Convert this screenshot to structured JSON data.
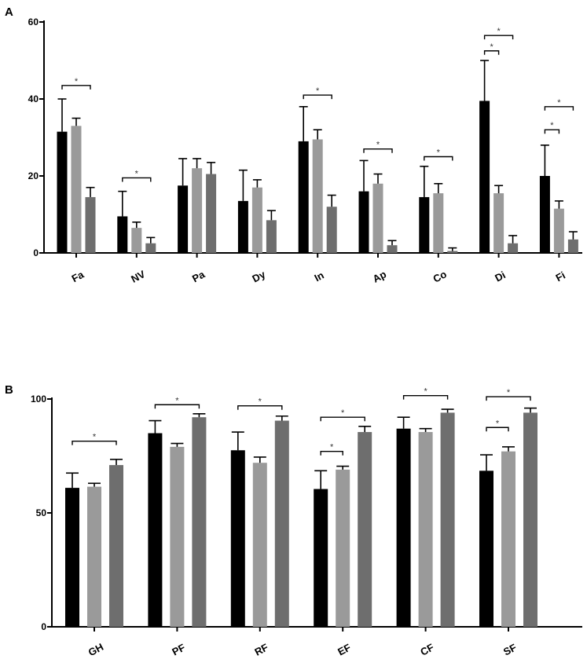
{
  "colors": {
    "series": [
      "#000000",
      "#9a9a9a",
      "#6e6e6e"
    ],
    "axis": "#000000"
  },
  "chart_data": [
    {
      "type": "bar",
      "panel": "A",
      "categories": [
        "Fa",
        "NV",
        "Pa",
        "Dy",
        "In",
        "Ap",
        "Co",
        "Di",
        "Fi"
      ],
      "ylim": [
        0,
        60
      ],
      "yticks": [
        0,
        20,
        40,
        60
      ],
      "grid": false,
      "legend": "none",
      "series": [
        {
          "values": [
            31.5,
            9.5,
            17.5,
            13.5,
            29,
            16,
            14.5,
            39.5,
            20
          ],
          "errors": [
            8.5,
            6.5,
            7,
            8,
            9,
            8,
            8,
            10.5,
            8
          ]
        },
        {
          "values": [
            33,
            6.5,
            22,
            17,
            29.5,
            18,
            15.5,
            15.5,
            11.5
          ],
          "errors": [
            2,
            1.5,
            2.5,
            2,
            2.5,
            2.5,
            2.5,
            2,
            2
          ]
        },
        {
          "values": [
            14.5,
            2.5,
            20.5,
            8.5,
            12,
            2,
            0.5,
            2.5,
            3.5
          ],
          "errors": [
            2.5,
            1.5,
            3,
            2.5,
            3,
            1.2,
            0.8,
            2,
            2
          ]
        }
      ],
      "significance": [
        {
          "category": 0,
          "from": 0,
          "to": 2,
          "y": 43.5,
          "label": "*"
        },
        {
          "category": 1,
          "from": 0,
          "to": 2,
          "y": 19.5,
          "label": "*"
        },
        {
          "category": 4,
          "from": 0,
          "to": 2,
          "y": 41.0,
          "label": "*"
        },
        {
          "category": 5,
          "from": 0,
          "to": 2,
          "y": 27.0,
          "label": "*"
        },
        {
          "category": 6,
          "from": 0,
          "to": 2,
          "y": 25.0,
          "label": "*"
        },
        {
          "category": 7,
          "from": 0,
          "to": 1,
          "y": 52.5,
          "label": "*"
        },
        {
          "category": 7,
          "from": 0,
          "to": 2,
          "y": 56.5,
          "label": "*"
        },
        {
          "category": 8,
          "from": 0,
          "to": 1,
          "y": 32.0,
          "label": "*"
        },
        {
          "category": 8,
          "from": 0,
          "to": 2,
          "y": 38.0,
          "label": "*"
        }
      ]
    },
    {
      "type": "bar",
      "panel": "B",
      "categories": [
        "GH",
        "PF",
        "RF",
        "EF",
        "CF",
        "SF"
      ],
      "ylim": [
        0,
        100
      ],
      "yticks": [
        0,
        50,
        100
      ],
      "grid": false,
      "legend": "none",
      "series": [
        {
          "values": [
            61,
            85,
            77.5,
            60.5,
            87,
            68.5
          ],
          "errors": [
            6.5,
            5.5,
            8,
            8,
            5,
            7
          ]
        },
        {
          "values": [
            61.5,
            79,
            72,
            69,
            85.5,
            77
          ],
          "errors": [
            1.5,
            1.5,
            2.5,
            1.5,
            1.5,
            2
          ]
        },
        {
          "values": [
            71,
            92,
            90.5,
            85.5,
            94,
            94
          ],
          "errors": [
            2.5,
            1.5,
            2,
            2.5,
            1.5,
            2
          ]
        }
      ],
      "significance": [
        {
          "category": 0,
          "from": 0,
          "to": 2,
          "y": 81.5,
          "label": "*"
        },
        {
          "category": 1,
          "from": 0,
          "to": 2,
          "y": 97.5,
          "label": "*"
        },
        {
          "category": 2,
          "from": 0,
          "to": 2,
          "y": 97.0,
          "label": "*"
        },
        {
          "category": 3,
          "from": 0,
          "to": 1,
          "y": 77.0,
          "label": "*"
        },
        {
          "category": 3,
          "from": 0,
          "to": 2,
          "y": 92.0,
          "label": "*"
        },
        {
          "category": 4,
          "from": 0,
          "to": 2,
          "y": 101.5,
          "label": "*"
        },
        {
          "category": 5,
          "from": 0,
          "to": 1,
          "y": 87.5,
          "label": "*"
        },
        {
          "category": 5,
          "from": 0,
          "to": 2,
          "y": 101.0,
          "label": "*"
        }
      ]
    }
  ]
}
